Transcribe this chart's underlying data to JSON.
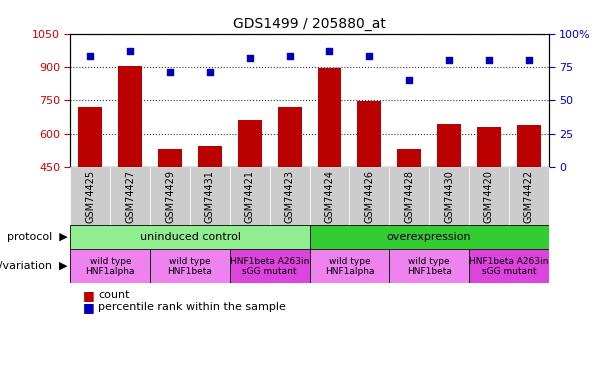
{
  "title": "GDS1499 / 205880_at",
  "samples": [
    "GSM74425",
    "GSM74427",
    "GSM74429",
    "GSM74431",
    "GSM74421",
    "GSM74423",
    "GSM74424",
    "GSM74426",
    "GSM74428",
    "GSM74430",
    "GSM74420",
    "GSM74422"
  ],
  "counts": [
    720,
    905,
    530,
    545,
    660,
    720,
    895,
    745,
    530,
    645,
    630,
    640
  ],
  "percentiles": [
    83,
    87,
    71,
    71,
    82,
    83,
    87,
    83,
    65,
    80,
    80,
    80
  ],
  "ylim_left": [
    450,
    1050
  ],
  "ylim_right": [
    0,
    100
  ],
  "yticks_left": [
    450,
    600,
    750,
    900,
    1050
  ],
  "yticks_right": [
    0,
    25,
    50,
    75,
    100
  ],
  "protocol_groups": [
    {
      "label": "uninduced control",
      "start": 0,
      "end": 6,
      "color": "#90EE90"
    },
    {
      "label": "overexpression",
      "start": 6,
      "end": 12,
      "color": "#33CC33"
    }
  ],
  "genotype_groups": [
    {
      "label": "wild type\nHNF1alpha",
      "start": 0,
      "end": 2,
      "color": "#EE82EE"
    },
    {
      "label": "wild type\nHNF1beta",
      "start": 2,
      "end": 4,
      "color": "#EE82EE"
    },
    {
      "label": "HNF1beta A263in\nsGG mutant",
      "start": 4,
      "end": 6,
      "color": "#DD44DD"
    },
    {
      "label": "wild type\nHNF1alpha",
      "start": 6,
      "end": 8,
      "color": "#EE82EE"
    },
    {
      "label": "wild type\nHNF1beta",
      "start": 8,
      "end": 10,
      "color": "#EE82EE"
    },
    {
      "label": "HNF1beta A263in\nsGG mutant",
      "start": 10,
      "end": 12,
      "color": "#DD44DD"
    }
  ],
  "bar_color": "#BB0000",
  "dot_color": "#0000BB",
  "label_protocol": "protocol",
  "label_genotype": "genotype/variation",
  "legend_count": "count",
  "legend_percentile": "percentile rank within the sample",
  "left_tick_color": "#CC0000",
  "right_tick_color": "#0000CC",
  "title_color": "#000000",
  "sample_bg_color": "#CCCCCC"
}
